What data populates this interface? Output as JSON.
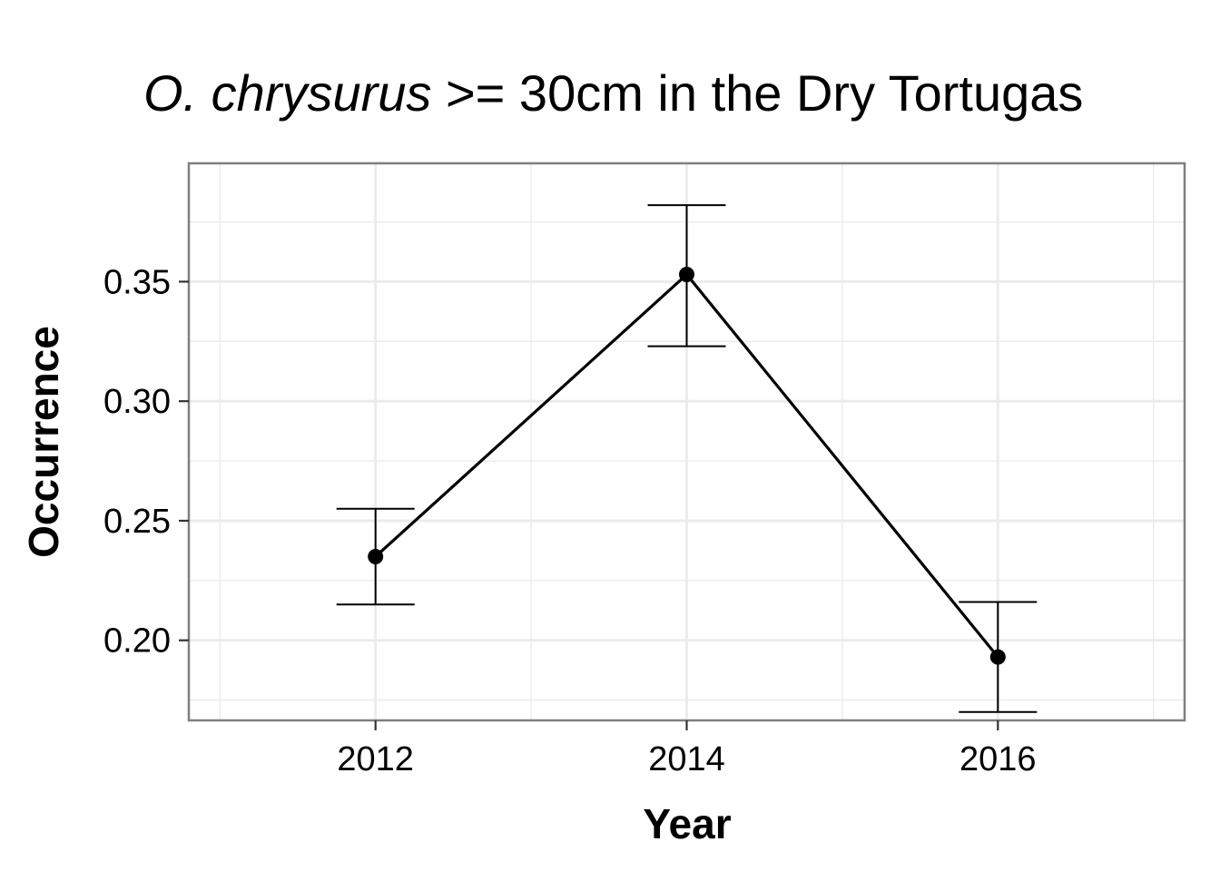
{
  "chart_data": {
    "type": "line",
    "title": {
      "species": "O. chrysurus",
      "rest": " >= 30cm in the Dry Tortugas"
    },
    "xlabel": "Year",
    "ylabel": "Occurrence",
    "x": [
      2012,
      2014,
      2016
    ],
    "xlim": [
      2010.8,
      2017.2
    ],
    "ylim": [
      0.1665,
      0.3995
    ],
    "x_ticks": [
      2012,
      2014,
      2016
    ],
    "x_tick_labels": [
      "2012",
      "2014",
      "2016"
    ],
    "y_ticks": [
      0.2,
      0.25,
      0.3,
      0.35
    ],
    "y_tick_labels": [
      "0.20",
      "0.25",
      "0.30",
      "0.35"
    ],
    "series": [
      {
        "values": [
          0.235,
          0.353,
          0.193
        ],
        "lower": [
          0.215,
          0.323,
          0.17
        ],
        "upper": [
          0.255,
          0.382,
          0.216
        ]
      }
    ],
    "grid": true,
    "legend": "none",
    "colors": {
      "line": "#000000",
      "grid": "#ebebeb",
      "border": "#7f7f7f"
    }
  }
}
